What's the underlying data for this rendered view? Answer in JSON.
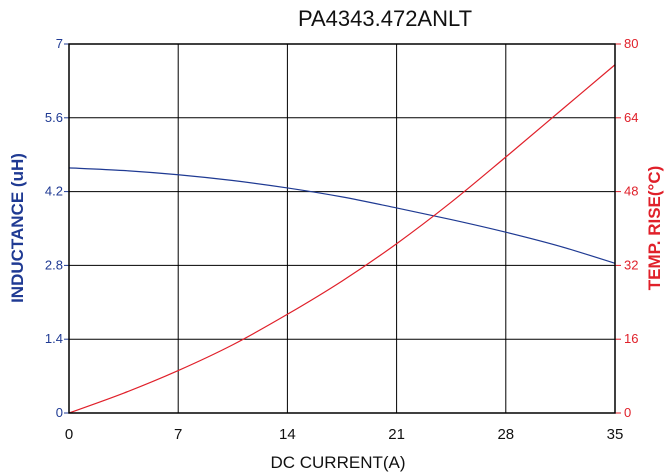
{
  "chart_data": {
    "type": "line",
    "title": "PA4343.472ANLT",
    "xlabel": "DC CURRENT(A)",
    "ylabel_left": "INDUCTANCE (uH)",
    "ylabel_right": "TEMP. RISE(°C)",
    "x_ticks": [
      "0",
      "7",
      "14",
      "21",
      "28",
      "35"
    ],
    "y_left_ticks": [
      "0",
      "1.4",
      "2.8",
      "4.2",
      "5.6",
      "7"
    ],
    "y_right_ticks": [
      "0",
      "16",
      "32",
      "48",
      "64",
      "80"
    ],
    "xlim": [
      0,
      35
    ],
    "ylim_left": [
      0,
      7
    ],
    "ylim_right": [
      0,
      80
    ],
    "grid": true,
    "colors": {
      "inductance": "#1f3a93",
      "temp": "#e0202a",
      "grid": "#000000"
    },
    "series": [
      {
        "axis": "left",
        "x": [
          0,
          3.5,
          7,
          10.5,
          14,
          17.5,
          21,
          24.5,
          28,
          31.5,
          35
        ],
        "values": [
          4.65,
          4.6,
          4.52,
          4.41,
          4.27,
          4.1,
          3.89,
          3.67,
          3.43,
          3.16,
          2.84
        ]
      },
      {
        "axis": "right",
        "x": [
          0,
          3.5,
          7,
          10.5,
          14,
          17.5,
          21,
          24.5,
          28,
          31.5,
          35
        ],
        "values": [
          0,
          4.3,
          9.2,
          14.8,
          21.4,
          28.6,
          36.7,
          45.7,
          55.5,
          65.5,
          75.5
        ]
      }
    ]
  }
}
